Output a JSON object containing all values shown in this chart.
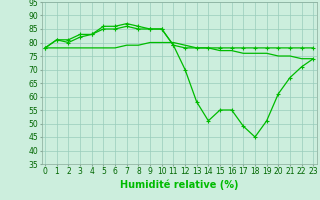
{
  "xlabel": "Humidité relative (%)",
  "background_color": "#cceedd",
  "line_color": "#00bb00",
  "grid_color": "#99ccbb",
  "x": [
    0,
    1,
    2,
    3,
    4,
    5,
    6,
    7,
    8,
    9,
    10,
    11,
    12,
    13,
    14,
    15,
    16,
    17,
    18,
    19,
    20,
    21,
    22,
    23
  ],
  "line1": [
    78,
    81,
    81,
    83,
    83,
    86,
    86,
    87,
    86,
    85,
    85,
    79,
    70,
    58,
    51,
    55,
    55,
    49,
    45,
    51,
    61,
    67,
    71,
    74
  ],
  "line2": [
    78,
    81,
    80,
    82,
    83,
    85,
    85,
    86,
    85,
    85,
    85,
    79,
    78,
    78,
    78,
    78,
    78,
    78,
    78,
    78,
    78,
    78,
    78,
    78
  ],
  "line3": [
    78,
    78,
    78,
    78,
    78,
    78,
    78,
    79,
    79,
    80,
    80,
    80,
    79,
    78,
    78,
    77,
    77,
    76,
    76,
    76,
    75,
    75,
    74,
    74
  ],
  "ylim": [
    35,
    95
  ],
  "yticks": [
    35,
    40,
    45,
    50,
    55,
    60,
    65,
    70,
    75,
    80,
    85,
    90,
    95
  ],
  "xticks": [
    0,
    1,
    2,
    3,
    4,
    5,
    6,
    7,
    8,
    9,
    10,
    11,
    12,
    13,
    14,
    15,
    16,
    17,
    18,
    19,
    20,
    21,
    22,
    23
  ],
  "markersize": 3.5,
  "linewidth": 0.9,
  "xlabel_fontsize": 7,
  "tick_fontsize": 5.5
}
